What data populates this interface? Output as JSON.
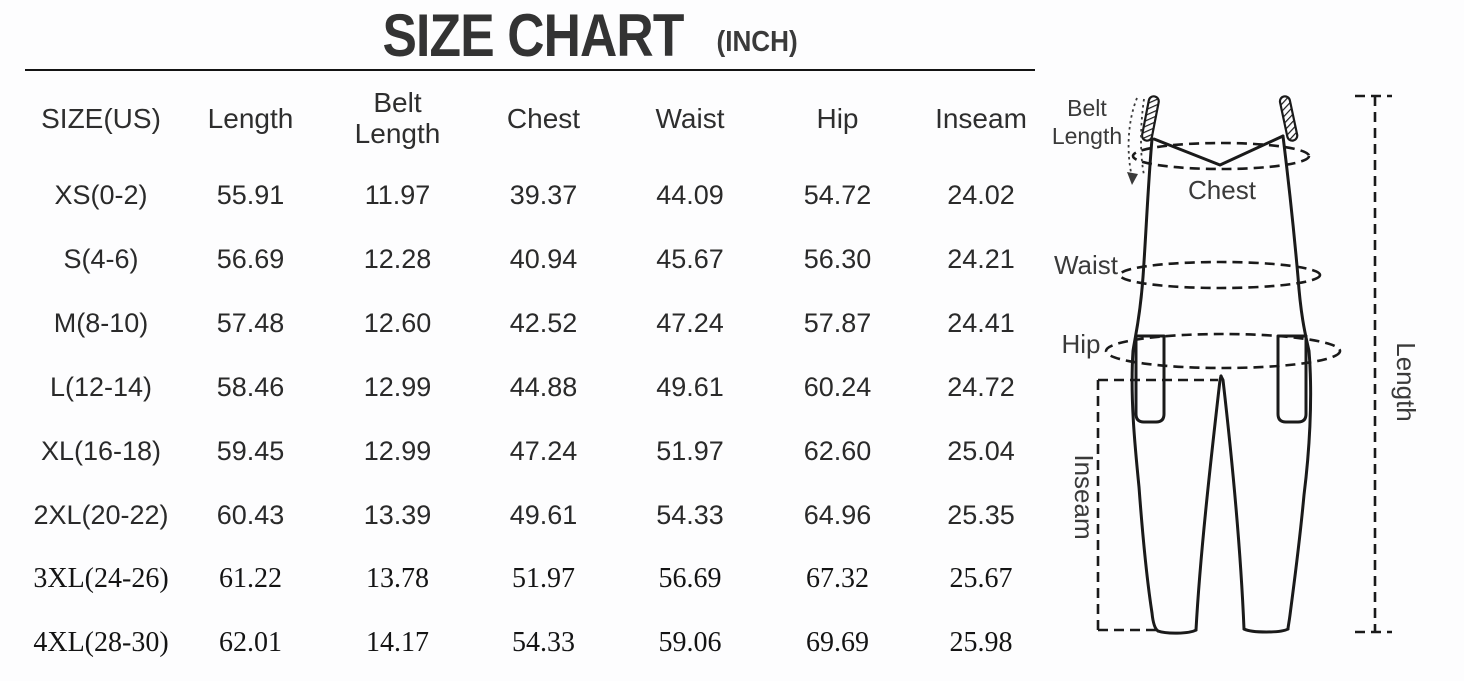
{
  "title": {
    "main": "SIZE CHART",
    "unit": "(INCH)"
  },
  "chart_data": {
    "type": "table",
    "title": "SIZE CHART (INCH)",
    "unit": "inch",
    "columns": [
      "SIZE(US)",
      "Length",
      "Belt Length",
      "Chest",
      "Waist",
      "Hip",
      "Inseam"
    ],
    "rows": [
      [
        "XS(0-2)",
        "55.91",
        "11.97",
        "39.37",
        "44.09",
        "54.72",
        "24.02"
      ],
      [
        "S(4-6)",
        "56.69",
        "12.28",
        "40.94",
        "45.67",
        "56.30",
        "24.21"
      ],
      [
        "M(8-10)",
        "57.48",
        "12.60",
        "42.52",
        "47.24",
        "57.87",
        "24.41"
      ],
      [
        "L(12-14)",
        "58.46",
        "12.99",
        "44.88",
        "49.61",
        "60.24",
        "24.72"
      ],
      [
        "XL(16-18)",
        "59.45",
        "12.99",
        "47.24",
        "51.97",
        "62.60",
        "25.04"
      ],
      [
        "2XL(20-22)",
        "60.43",
        "13.39",
        "49.61",
        "54.33",
        "64.96",
        "25.35"
      ],
      [
        "3XL(24-26)",
        "61.22",
        "13.78",
        "51.97",
        "56.69",
        "67.32",
        "25.67"
      ],
      [
        "4XL(28-30)",
        "62.01",
        "14.17",
        "54.33",
        "59.06",
        "69.69",
        "25.98"
      ]
    ]
  },
  "diagram": {
    "labels": {
      "belt": [
        "Belt",
        "Length"
      ],
      "chest": "Chest",
      "waist": "Waist",
      "hip": "Hip",
      "inseam": "Inseam",
      "length": "Length"
    }
  },
  "colors": {
    "text": "#2b2b2b",
    "line": "#1a1a1a"
  }
}
